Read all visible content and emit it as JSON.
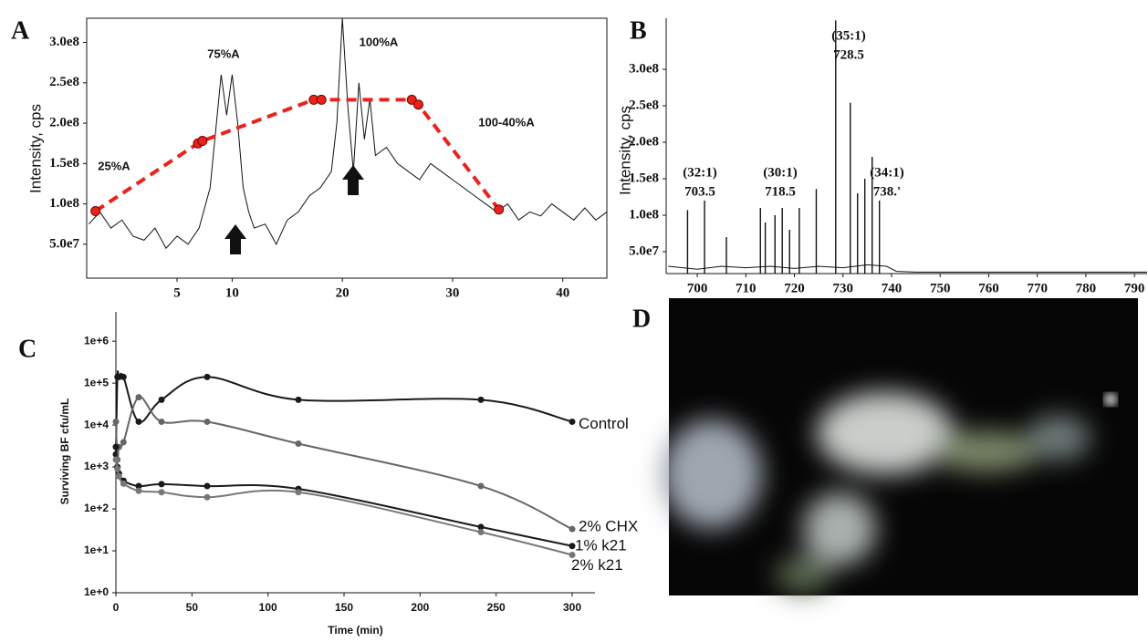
{
  "chart_data": [
    {
      "type": "line",
      "panel": "A",
      "y_label": "Intensity, cps",
      "xlim": [
        -3.2,
        44
      ],
      "xticks": [
        5,
        10,
        20,
        30,
        40
      ],
      "ylim": [
        8000000,
        330000000
      ],
      "yticks": [
        {
          "value": 50000000.0,
          "label": "5.0e7"
        },
        {
          "value": 100000000.0,
          "label": "1.0e8"
        },
        {
          "value": 150000000.0,
          "label": "1.5e8"
        },
        {
          "value": 200000000.0,
          "label": "2.0e8"
        },
        {
          "value": 250000000.0,
          "label": "2.5e8"
        },
        {
          "value": 300000000.0,
          "label": "3.0e8"
        }
      ],
      "annotations": [
        "25%A",
        "75%A",
        "100%A",
        "100-40%A"
      ],
      "series": [
        {
          "color": "#111111",
          "x": [
            -3,
            -2,
            -1,
            0,
            1,
            2,
            3,
            4,
            5,
            6,
            7,
            8,
            8.5,
            9,
            9.5,
            10,
            10.5,
            11,
            11.5,
            12,
            13,
            14,
            15,
            16,
            17,
            18,
            19,
            19.5,
            20,
            20.5,
            21,
            21.5,
            22,
            22.5,
            23,
            24,
            25,
            26,
            27,
            28,
            29,
            30,
            31,
            32,
            33,
            34,
            35,
            36,
            37,
            38,
            39,
            40,
            41,
            42,
            43,
            44
          ],
          "values": [
            75000000.0,
            90000000.0,
            70000000.0,
            80000000.0,
            60000000.0,
            55000000.0,
            70000000.0,
            45000000.0,
            60000000.0,
            50000000.0,
            70000000.0,
            120000000.0,
            190000000.0,
            260000000.0,
            210000000.0,
            260000000.0,
            200000000.0,
            120000000.0,
            90000000.0,
            70000000.0,
            75000000.0,
            50000000.0,
            80000000.0,
            90000000.0,
            110000000.0,
            120000000.0,
            140000000.0,
            200000000.0,
            330000000.0,
            220000000.0,
            140000000.0,
            250000000.0,
            180000000.0,
            230000000.0,
            160000000.0,
            170000000.0,
            150000000.0,
            140000000.0,
            130000000.0,
            150000000.0,
            140000000.0,
            130000000.0,
            120000000.0,
            110000000.0,
            100000000.0,
            90000000.0,
            100000000.0,
            80000000.0,
            90000000.0,
            85000000.0,
            100000000.0,
            90000000.0,
            80000000.0,
            95000000.0,
            80000000.0,
            90000000.0
          ]
        },
        {
          "color": "#e8231c",
          "dashed": true,
          "markers": true,
          "x": [
            -2.4,
            6.9,
            7.3,
            17.4,
            18.1,
            26.3,
            26.9,
            34.2
          ],
          "values": [
            91000000.0,
            175000000.0,
            178000000.0,
            229000000.0,
            229000000.0,
            229000000.0,
            223000000.0,
            93000000.0
          ]
        }
      ]
    },
    {
      "type": "stem",
      "panel": "B",
      "y_label": "Intensity, cps",
      "xlim": [
        693.6,
        792.6
      ],
      "xticks": [
        700,
        710,
        720,
        730,
        740,
        750,
        760,
        770,
        780,
        790
      ],
      "ylim": [
        20000000,
        370000000
      ],
      "yticks": [
        {
          "value": 50000000.0,
          "label": "5.0e7"
        },
        {
          "value": 100000000.0,
          "label": "1.0e8"
        },
        {
          "value": 150000000.0,
          "label": "1.5e8"
        },
        {
          "value": 200000000.0,
          "label": "2.0e8"
        },
        {
          "value": 250000000.0,
          "label": "2.5e8"
        },
        {
          "value": 300000000.0,
          "label": "3.0e8"
        }
      ],
      "color": "#111111",
      "peaks": {
        "x": [
          698,
          701.5,
          706,
          713,
          714,
          716,
          717.5,
          719,
          721,
          724.5,
          728.5,
          731.5,
          733,
          734.5,
          736,
          737.5
        ],
        "values": [
          107000000.0,
          120000000.0,
          70000000.0,
          110000000.0,
          90000000.0,
          100000000.0,
          110000000.0,
          80000000.0,
          110000000.0,
          136000000.0,
          367000000.0,
          254000000.0,
          130000000.0,
          150000000.0,
          180000000.0,
          120000000.0
        ]
      },
      "baseline": {
        "x": [
          694,
          700,
          705,
          710,
          715,
          720,
          725,
          730,
          735,
          739,
          741,
          745,
          750,
          760,
          770,
          780,
          790,
          792.6
        ],
        "values": [
          30000000.0,
          26000000.0,
          30000000.0,
          28000000.0,
          30000000.0,
          27000000.0,
          30000000.0,
          28000000.0,
          32000000.0,
          30000000.0,
          23000000.0,
          22000000.0,
          22000000.0,
          22000000.0,
          22000000.0,
          22000000.0,
          22000000.0,
          22000000.0
        ]
      },
      "annotations": [
        {
          "lines": [
            "(32:1)",
            "703.5"
          ]
        },
        {
          "lines": [
            "(30:1)",
            "718.5"
          ]
        },
        {
          "lines": [
            "(35:1)",
            "728.5"
          ]
        },
        {
          "lines": [
            "(34:1)",
            "738.'"
          ]
        }
      ]
    },
    {
      "type": "line",
      "panel": "C",
      "log_y": true,
      "smooth": true,
      "series_labels": true,
      "x_label": "Time (min)",
      "y_label": "Surviving BF cfu/mL",
      "xlim": [
        0,
        315
      ],
      "xticks": [
        0,
        50,
        100,
        150,
        200,
        250,
        300
      ],
      "ylim": [
        1,
        5000000
      ],
      "yticks": [
        {
          "value": 1,
          "label": "1e+0"
        },
        {
          "value": 10,
          "label": "1e+1"
        },
        {
          "value": 100,
          "label": "1e+2"
        },
        {
          "value": 1000,
          "label": "1e+3"
        },
        {
          "value": 10000,
          "label": "1e+4"
        },
        {
          "value": 100000,
          "label": "1e+5"
        },
        {
          "value": 1000000,
          "label": "1e+6"
        }
      ],
      "x": [
        0,
        1,
        2,
        5,
        15,
        30,
        60,
        120,
        240,
        300
      ],
      "series": [
        {
          "name": "Control",
          "color": "#1a1a1a",
          "markers": true,
          "values": [
            2000,
            140000,
            140000,
            140000,
            12000,
            40000,
            140000,
            40000,
            40000,
            12000
          ]
        },
        {
          "name": "2% CHX",
          "color": "#666666",
          "markers": true,
          "values": [
            12000,
            1500,
            3000,
            3900,
            46000,
            12000,
            12000,
            3600,
            350,
            33
          ]
        },
        {
          "name": "1% k21",
          "color": "#1a1a1a",
          "markers": true,
          "values": [
            3000,
            1000,
            700,
            470,
            350,
            390,
            350,
            300,
            37,
            13
          ]
        },
        {
          "name": "2% k21",
          "color": "#777777",
          "markers": true,
          "values": [
            1500,
            900,
            600,
            400,
            270,
            250,
            190,
            250,
            28,
            8
          ]
        }
      ]
    }
  ],
  "image": {
    "panel": "D"
  }
}
